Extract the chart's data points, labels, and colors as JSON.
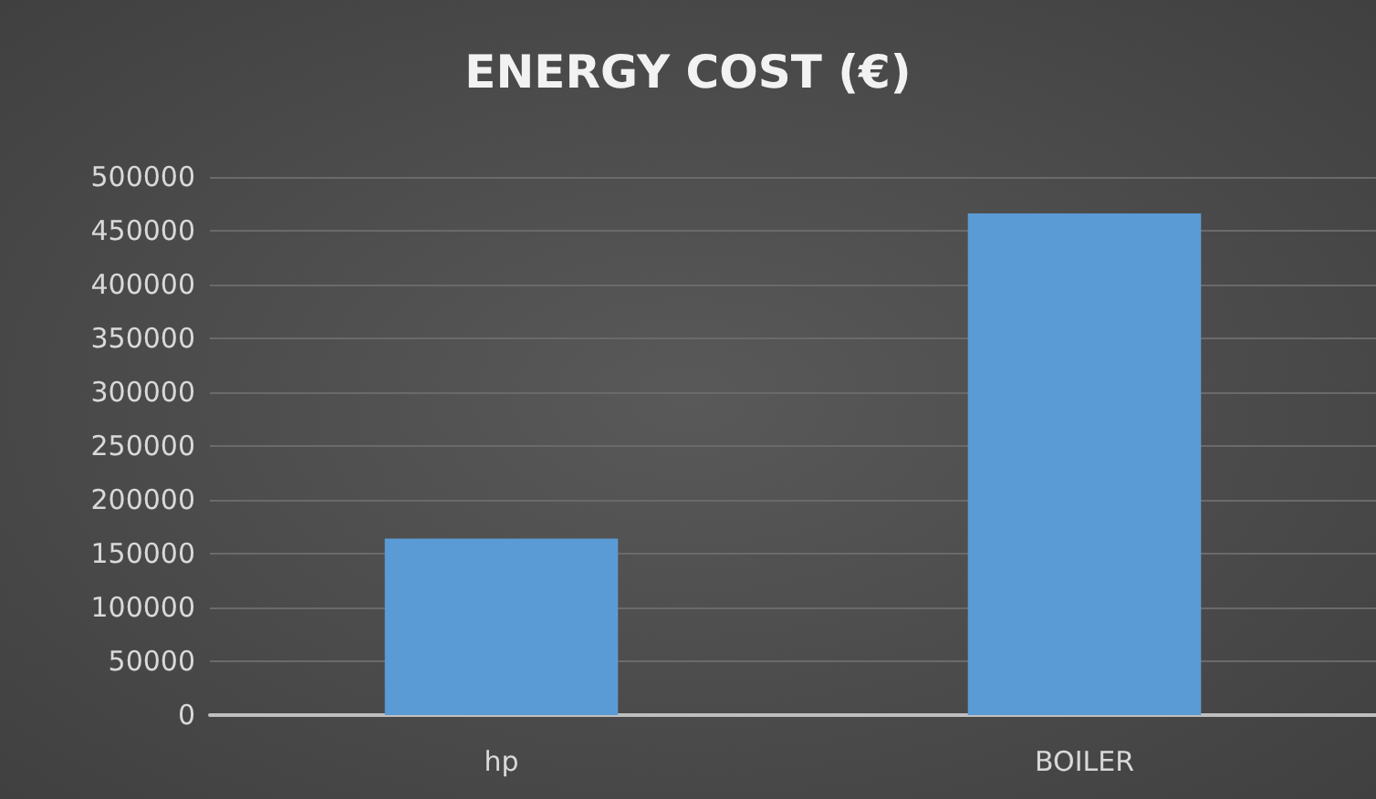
{
  "chart_data": {
    "type": "bar",
    "title": "ENERGY COST (€)",
    "categories": [
      "hp",
      "BOILER"
    ],
    "values": [
      164000,
      466000
    ],
    "color": "#5b9bd5",
    "ylim": [
      0,
      500000
    ],
    "yticks": [
      0,
      50000,
      100000,
      150000,
      200000,
      250000,
      300000,
      350000,
      400000,
      450000,
      500000
    ],
    "grid": "y"
  }
}
